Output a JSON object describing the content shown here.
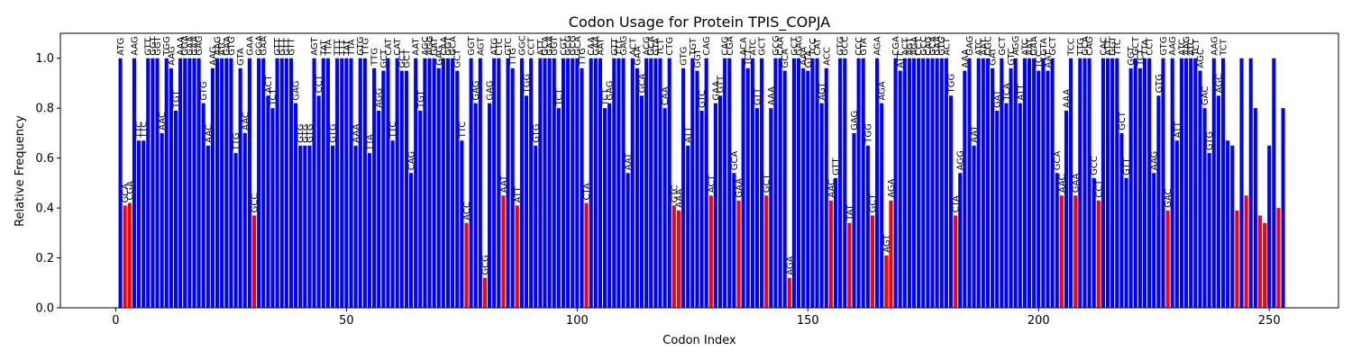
{
  "chart_data": {
    "type": "bar",
    "title": "Codon Usage for Protein TPIS_COPJA",
    "xlabel": "Codon Index",
    "ylabel": "Relative Frequency",
    "xlim": [
      -12,
      265
    ],
    "ylim": [
      0,
      1.1
    ],
    "xticks": [
      0,
      50,
      100,
      150,
      200,
      250
    ],
    "yticks": [
      0.0,
      0.2,
      0.4,
      0.6,
      0.8,
      1.0
    ],
    "grid": false,
    "legend": "none",
    "colors": {
      "common": "#0000ff",
      "rare": "#ff0000"
    },
    "rare_threshold": 0.5,
    "x": [
      1,
      2,
      3,
      4,
      5,
      6,
      7,
      8,
      9,
      10,
      11,
      12,
      13,
      14,
      15,
      16,
      17,
      18,
      19,
      20,
      21,
      22,
      23,
      24,
      25,
      26,
      27,
      28,
      29,
      30,
      31,
      32,
      33,
      34,
      35,
      36,
      37,
      38,
      39,
      40,
      41,
      42,
      43,
      44,
      45,
      46,
      47,
      48,
      49,
      50,
      51,
      52,
      53,
      54,
      55,
      56,
      57,
      58,
      59,
      60,
      61,
      62,
      63,
      64,
      65,
      66,
      67,
      68,
      69,
      70,
      71,
      72,
      73,
      74,
      75,
      76,
      77,
      78,
      79,
      80,
      81,
      82,
      83,
      84,
      85,
      86,
      87,
      88,
      89,
      90,
      91,
      92,
      93,
      94,
      95,
      96,
      97,
      98,
      99,
      100,
      101,
      102,
      103,
      104,
      105,
      106,
      107,
      108,
      109,
      110,
      111,
      112,
      113,
      114,
      115,
      116,
      117,
      118,
      119,
      120,
      121,
      122,
      123,
      124,
      125,
      126,
      127,
      128,
      129,
      130,
      131,
      132,
      133,
      134,
      135,
      136,
      137,
      138,
      139,
      140,
      141,
      142,
      143,
      144,
      145,
      146,
      147,
      148,
      149,
      150,
      151,
      152,
      153,
      154,
      155,
      156,
      157,
      158,
      159,
      160,
      161,
      162,
      163,
      164,
      165,
      166,
      167,
      168,
      169,
      170,
      171,
      172,
      173,
      174,
      175,
      176,
      177,
      178,
      179,
      180,
      181,
      182,
      183,
      184,
      185,
      186,
      187,
      188,
      189,
      190,
      191,
      192,
      193,
      194,
      195,
      196,
      197,
      198,
      199,
      200,
      201,
      202,
      203,
      204,
      205,
      206,
      207,
      208,
      209,
      210,
      211,
      212,
      213,
      214,
      215,
      216,
      217,
      218,
      219,
      220,
      221,
      222,
      223,
      224,
      225,
      226,
      227,
      228,
      229,
      230,
      231,
      232,
      233,
      234,
      235,
      236,
      237,
      238,
      239,
      240,
      241,
      242,
      243,
      244,
      245,
      246,
      247,
      248,
      249,
      250,
      251,
      252,
      253
    ],
    "codons": [
      "ATG",
      "GCA",
      "CGA",
      "AAG",
      "TTC",
      "TTC",
      "GTT",
      "GGT",
      "GGT",
      "AAC",
      "TGG",
      "AAG",
      "TGT",
      "AAA",
      "GGA",
      "GAA",
      "GAA",
      "GAG",
      "GTG",
      "AAC",
      "AAG",
      "AAG",
      "ATC",
      "GAA",
      "GTG",
      "TTG",
      "GTA",
      "AAC",
      "GAA",
      "GCC",
      "GGA",
      "GAA",
      "ACT",
      "TCT",
      "GTT",
      "GTT",
      "GTT",
      "GTT",
      "GAG",
      "GTG",
      "GTG",
      "GTG",
      "AGT",
      "CCT",
      "TAT",
      "TTA",
      "GTG",
      "TTT",
      "TTT",
      "TAT",
      "TTA",
      "AAA",
      "GTG",
      "TTG",
      "TTA",
      "TTG",
      "AGG",
      "GCT",
      "CAT",
      "TTC",
      "CAT",
      "GCT",
      "GCT",
      "CAG",
      "AAT",
      "TGT",
      "AGC",
      "AGG",
      "GAT",
      "GAG",
      "CAA",
      "GGT",
      "GCA",
      "GCT",
      "TTC",
      "ACC",
      "GGT",
      "GAG",
      "AGT",
      "GCG",
      "GAG",
      "ATG",
      "CTC",
      "AAT",
      "GTC",
      "TTG",
      "ATT",
      "GGC",
      "TGG",
      "CCT",
      "GTG",
      "ATT",
      "GCA",
      "GAA",
      "GGT",
      "TCT",
      "CGT",
      "GCG",
      "GCG",
      "GCA",
      "TTG",
      "CTA",
      "CAA",
      "GAA",
      "AAT",
      "TCT",
      "GAG",
      "GTT",
      "TTT",
      "GAG",
      "AAT",
      "ACT",
      "GAA",
      "GCA",
      "ACG",
      "GCA",
      "GTA",
      "TCT",
      "CAA",
      "CTG",
      "GTC",
      "AAA",
      "GTG",
      "ATT",
      "TGT",
      "GGT",
      "GTC",
      "CAG",
      "ACT",
      "GAA",
      "GTT",
      "CAG",
      "CGA",
      "GCA",
      "GAA",
      "ACA",
      "TCT",
      "ATC",
      "GTT",
      "GCT",
      "GCT",
      "AAA",
      "GCG",
      "CAA",
      "GCA",
      "AGA",
      "GCT",
      "GAG",
      "AAA",
      "GTA",
      "TCC",
      "CAT",
      "AGT",
      "ACC",
      "AAC",
      "GTT",
      "GTG",
      "GCC",
      "TAT",
      "GAG",
      "CCC",
      "GTA",
      "TGG",
      "GCT",
      "AGA",
      "AGA",
      "AGT",
      "AGA",
      "CGA",
      "ATT",
      "ACT",
      "AGT",
      "AGA",
      "CCT",
      "GCC",
      "CAG",
      "GCA",
      "GAA",
      "GTG",
      "ACT",
      "TGG",
      "CTA",
      "AGG",
      "AAA",
      "GAG",
      "AAT",
      "ATC",
      "AAT",
      "CGC",
      "GAT",
      "GAT",
      "GCT",
      "TCA",
      "GTC",
      "AGG",
      "ATT",
      "ATC",
      "AAT",
      "GAA",
      "TCC",
      "GTA",
      "AAT",
      "GCT",
      "GCA",
      "AAC",
      "AAA",
      "TCC",
      "GAA",
      "TTG",
      "GCA",
      "CAG",
      "GCC",
      "CCT",
      "CAC",
      "ATT",
      "GGT",
      "TTC",
      "GCT",
      "GTT",
      "GGT",
      "GCT",
      "TCT",
      "TTA",
      "CCT",
      "AAG",
      "GTG",
      "GTG",
      "GAC",
      "AAG",
      "ATT",
      "ATC",
      "AAG",
      "ATC",
      "TCT",
      "AGC",
      "GAC",
      "GTG",
      "AAG",
      "AGC",
      "TCT"
    ],
    "values": [
      1.0,
      0.41,
      0.42,
      1.0,
      0.67,
      0.67,
      1.0,
      1.0,
      1.0,
      0.7,
      1.0,
      0.96,
      0.79,
      1.0,
      1.0,
      1.0,
      1.0,
      1.0,
      0.82,
      0.65,
      0.96,
      1.0,
      1.0,
      1.0,
      1.0,
      0.62,
      0.96,
      0.7,
      1.0,
      0.37,
      1.0,
      1.0,
      0.85,
      0.8,
      1.0,
      1.0,
      1.0,
      1.0,
      0.82,
      0.65,
      0.65,
      0.65,
      1.0,
      0.85,
      1.0,
      1.0,
      0.65,
      1.0,
      1.0,
      1.0,
      1.0,
      0.65,
      1.0,
      1.0,
      0.62,
      0.96,
      0.79,
      0.95,
      1.0,
      0.67,
      1.0,
      0.95,
      0.95,
      0.54,
      1.0,
      0.79,
      1.0,
      1.0,
      1.0,
      0.96,
      1.0,
      1.0,
      1.0,
      0.95,
      0.67,
      0.34,
      1.0,
      0.82,
      1.0,
      0.12,
      0.82,
      1.0,
      1.0,
      0.45,
      1.0,
      0.96,
      0.41,
      1.0,
      0.85,
      1.0,
      0.65,
      1.0,
      1.0,
      1.0,
      1.0,
      0.8,
      1.0,
      1.0,
      1.0,
      1.0,
      0.96,
      0.42,
      1.0,
      1.0,
      1.0,
      0.8,
      0.82,
      1.0,
      1.0,
      1.0,
      0.54,
      1.0,
      0.96,
      0.85,
      1.0,
      1.0,
      1.0,
      1.0,
      0.8,
      1.0,
      0.41,
      0.39,
      0.96,
      0.65,
      1.0,
      0.95,
      0.79,
      1.0,
      0.45,
      0.82,
      0.85,
      1.0,
      1.0,
      0.54,
      0.43,
      1.0,
      0.96,
      1.0,
      0.8,
      1.0,
      0.45,
      0.8,
      1.0,
      1.0,
      0.95,
      0.12,
      1.0,
      1.0,
      0.96,
      0.95,
      1.0,
      1.0,
      0.82,
      0.96,
      0.43,
      0.52,
      1.0,
      1.0,
      0.34,
      0.7,
      1.0,
      1.0,
      0.65,
      0.37,
      1.0,
      0.82,
      0.21,
      0.43,
      1.0,
      0.95,
      1.0,
      1.0,
      1.0,
      1.0,
      1.0,
      1.0,
      1.0,
      1.0,
      1.0,
      1.0,
      0.85,
      0.37,
      0.54,
      0.95,
      1.0,
      0.65,
      1.0,
      1.0,
      1.0,
      0.96,
      0.79,
      1.0,
      0.82,
      0.96,
      1.0,
      0.82,
      1.0,
      1.0,
      1.0,
      0.95,
      1.0,
      0.95,
      1.0,
      0.54,
      0.45,
      0.79,
      1.0,
      0.45,
      1.0,
      1.0,
      1.0,
      0.52,
      0.43,
      1.0,
      1.0,
      1.0,
      1.0,
      0.7,
      0.52,
      0.96,
      1.0,
      0.96,
      1.0,
      1.0,
      0.54,
      0.85,
      1.0,
      0.39,
      1.0,
      0.67,
      1.0,
      1.0,
      1.0,
      1.0,
      0.95,
      0.8,
      0.62,
      1.0,
      0.85,
      1.0,
      0.67,
      0.65,
      0.39,
      1.0,
      0.45,
      1.0,
      0.8,
      0.37,
      0.34,
      0.65,
      1.0,
      0.4,
      0.8
    ]
  }
}
